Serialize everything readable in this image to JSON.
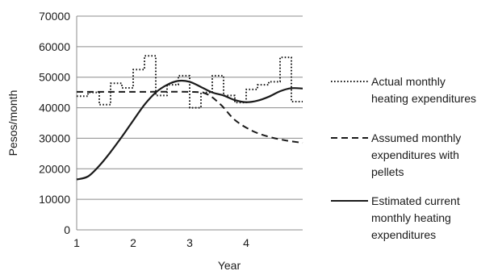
{
  "chart_data": {
    "type": "line",
    "title": "",
    "xlabel": "Year",
    "ylabel": "Pesos/month",
    "ylim": [
      0,
      70000
    ],
    "xlim": [
      1,
      5
    ],
    "yticks": [
      0,
      10000,
      20000,
      30000,
      40000,
      50000,
      60000,
      70000
    ],
    "ytick_labels": [
      "0",
      "10000",
      "20000",
      "30000",
      "40000",
      "50000",
      "60000",
      "70000"
    ],
    "xticks": [
      1,
      2,
      3,
      4
    ],
    "xtick_labels": [
      "1",
      "2",
      "3",
      "4"
    ],
    "grid": "horizontal",
    "legend_position": "right",
    "series": [
      {
        "name": "Actual monthly heating expenditures",
        "style": "dotted",
        "color": "#1a1a1a",
        "step": true,
        "values": [
          43800,
          45000,
          41000,
          48000,
          46500,
          52500,
          57000,
          44000,
          47500,
          50500,
          40000,
          45000,
          50500,
          44000,
          41700,
          46000,
          47500,
          48500,
          56500,
          42000
        ]
      },
      {
        "name": "Assumed monthly expenditures with pellets",
        "style": "dashed",
        "color": "#1a1a1a",
        "points": [
          [
            1,
            45200
          ],
          [
            2,
            45200
          ],
          [
            3,
            45200
          ],
          [
            3.3,
            44500
          ],
          [
            3.55,
            41000
          ],
          [
            3.8,
            36000
          ],
          [
            4.1,
            32500
          ],
          [
            4.4,
            30500
          ],
          [
            4.7,
            29300
          ],
          [
            5,
            28500
          ]
        ]
      },
      {
        "name": "Estimated current monthly heating expenditures",
        "style": "solid",
        "color": "#1a1a1a",
        "points": [
          [
            1,
            16500
          ],
          [
            1.2,
            17500
          ],
          [
            1.4,
            21000
          ],
          [
            1.6,
            25500
          ],
          [
            1.8,
            30500
          ],
          [
            2,
            35800
          ],
          [
            2.2,
            41000
          ],
          [
            2.4,
            45000
          ],
          [
            2.6,
            47500
          ],
          [
            2.8,
            48800
          ],
          [
            3,
            48500
          ],
          [
            3.2,
            46800
          ],
          [
            3.4,
            45000
          ],
          [
            3.6,
            44000
          ],
          [
            3.8,
            42500
          ],
          [
            4,
            41800
          ],
          [
            4.2,
            42300
          ],
          [
            4.4,
            43600
          ],
          [
            4.6,
            45400
          ],
          [
            4.8,
            46400
          ],
          [
            5,
            46300
          ]
        ]
      }
    ],
    "legend": [
      {
        "lines": [
          "Actual monthly",
          "heating expenditures"
        ],
        "style": "dotted"
      },
      {
        "lines": [
          "Assumed monthly",
          "expenditures with",
          "pellets"
        ],
        "style": "dashed"
      },
      {
        "lines": [
          "Estimated current",
          "monthly heating",
          "expenditures"
        ],
        "style": "solid"
      }
    ]
  }
}
